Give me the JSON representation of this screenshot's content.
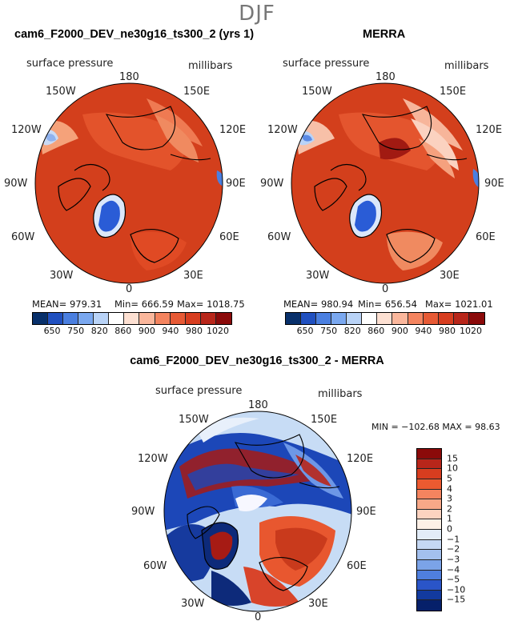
{
  "season": "DJF",
  "panels": [
    {
      "title": "cam6_F2000_DEV_ne30g16_ts300_2 (yrs 1)",
      "variable": "surface pressure",
      "units": "millibars",
      "mean_label": "MEAN=",
      "mean": "979.31",
      "min_label": "Min=",
      "min": "666.59",
      "max_label": "Max=",
      "max": "1018.75"
    },
    {
      "title": "MERRA",
      "variable": "surface pressure",
      "units": "millibars",
      "mean_label": "MEAN=",
      "mean": "980.94",
      "min_label": "Min=",
      "min": "656.54",
      "max_label": "Max=",
      "max": "1021.01"
    }
  ],
  "diff_panel": {
    "title": "cam6_F2000_DEV_ne30g16_ts300_2 - MERRA",
    "variable": "surface pressure",
    "units": "millibars",
    "stats": "MIN = −102.68 MAX =   98.63"
  },
  "longitude_labels": {
    "top": "180",
    "top_left": "150W",
    "top_right": "150E",
    "upper_left": "120W",
    "upper_right": "120E",
    "left": "90W",
    "right": "90E",
    "lower_left": "60W",
    "lower_right": "60E",
    "bottom_left": "30W",
    "bottom_right": "30E",
    "bottom": "0"
  },
  "colorbar_top": {
    "ticks": [
      "650",
      "750",
      "820",
      "860",
      "900",
      "940",
      "980",
      "1020"
    ],
    "colors": [
      "#08306b",
      "#2050c0",
      "#4a7fe0",
      "#7aa8f0",
      "#b9d3f7",
      "#ffffff",
      "#fde0d2",
      "#fbb79c",
      "#f4845f",
      "#e75a35",
      "#d73d1f",
      "#b8261a",
      "#8b0a0a"
    ]
  },
  "colorbar_diff": {
    "ticks": [
      "15",
      "10",
      "5",
      "4",
      "3",
      "2",
      "1",
      "0",
      "−1",
      "−2",
      "−3",
      "−4",
      "−5",
      "−10",
      "−15"
    ],
    "colors": [
      "#8b0a0a",
      "#b8261a",
      "#d73d1f",
      "#ec5a30",
      "#f4845f",
      "#f8a888",
      "#fcd3c0",
      "#fdf0e6",
      "#e2ecf8",
      "#c5d8f3",
      "#a3c0ee",
      "#7ba3e8",
      "#4f7fde",
      "#2a55c8",
      "#123a9e",
      "#06206a"
    ]
  },
  "colors": {
    "ocean_red": "#d33f1c",
    "land_red": "#e04a24",
    "greenland_blue": "#2a5cd6"
  }
}
